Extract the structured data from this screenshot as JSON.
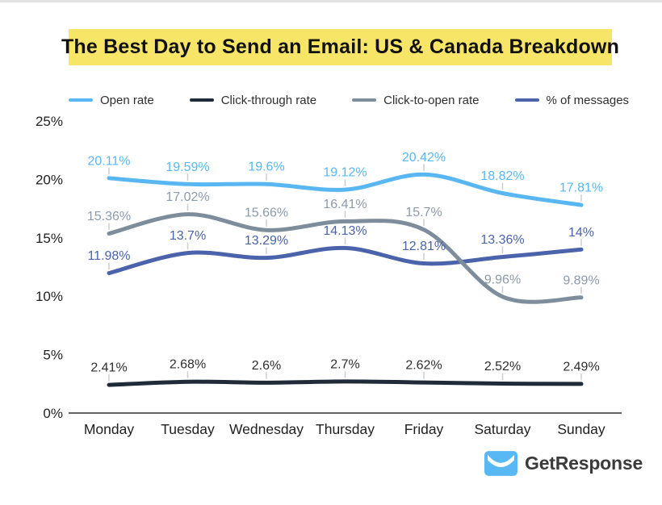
{
  "page": {
    "title": "The Best Day to Send an Email: US & Canada Breakdown",
    "title_highlight_color": "#F6E566"
  },
  "chart_data": {
    "type": "line",
    "categories": [
      "Monday",
      "Tuesday",
      "Wednesday",
      "Thursday",
      "Friday",
      "Saturday",
      "Sunday"
    ],
    "series": [
      {
        "name": "Open rate",
        "color": "#58B7F2",
        "label_color": "#58B7F2",
        "values": [
          20.11,
          19.59,
          19.6,
          19.12,
          20.42,
          18.82,
          17.81
        ]
      },
      {
        "name": "Click-through rate",
        "color": "#1F2B38",
        "label_color": "#2e2e2e",
        "values": [
          2.41,
          2.68,
          2.6,
          2.7,
          2.62,
          2.52,
          2.49
        ]
      },
      {
        "name": "Click-to-open rate",
        "color": "#7E8D9B",
        "label_color": "#8C9AAA",
        "values": [
          15.36,
          17.02,
          15.66,
          16.41,
          15.7,
          9.96,
          9.89
        ]
      },
      {
        "name": "% of messages",
        "color": "#4A63AB",
        "label_color": "#4A63AB",
        "values": [
          11.98,
          13.7,
          13.29,
          14.13,
          12.81,
          13.36,
          14
        ]
      }
    ],
    "legend_order": [
      "Open rate",
      "Click-through rate",
      "Click-to-open rate",
      "% of messages"
    ],
    "y_tick_values": [
      0,
      5,
      10,
      15,
      20,
      25
    ],
    "y_tick_labels": [
      "0%",
      "5%",
      "10%",
      "15%",
      "20%",
      "25%"
    ],
    "ylim": [
      0,
      25
    ],
    "grid": false,
    "legend_position": "top",
    "data_labels": "value + %"
  },
  "footer": {
    "logo_text": "GetResponse",
    "logo_color": "#58B8F3"
  }
}
